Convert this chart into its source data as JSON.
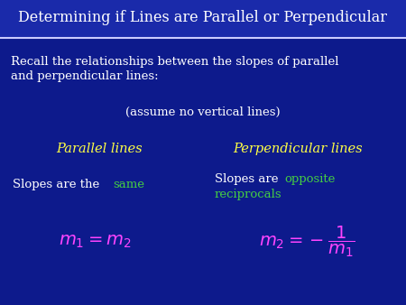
{
  "title": "Determining if Lines are Parallel or Perpendicular",
  "title_color": "#ffffff",
  "title_fontsize": 11.5,
  "bg_color": "#0d1a8c",
  "header_bg": "#161f9e",
  "line_color": "#ccccff",
  "body_text_color": "#ffffff",
  "yellow_color": "#ffff44",
  "green_color": "#44cc44",
  "magenta_color": "#ff44ff",
  "recall_line1": "Recall the relationships between the slopes of parallel",
  "recall_line2": "and perpendicular lines:",
  "assume_text": "(assume no vertical lines)",
  "parallel_label": "Parallel lines",
  "perp_label": "Perpendicular lines"
}
